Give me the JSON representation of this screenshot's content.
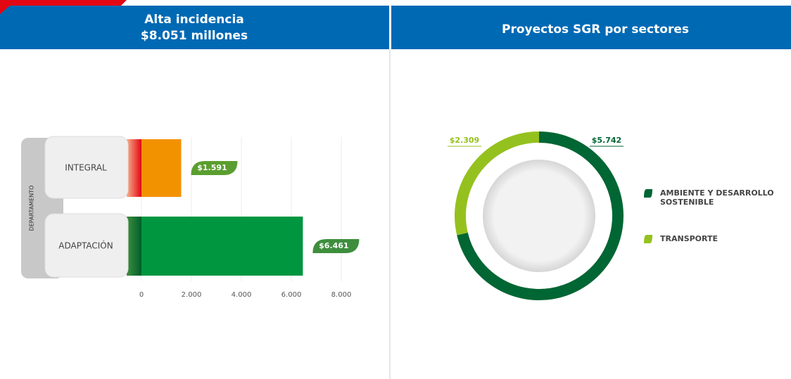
{
  "chart_data": [
    {
      "type": "hbar",
      "title": "Alta incidencia",
      "subtitle": "$8.051 millones",
      "axis_label": "DEPARTAMENTO",
      "categories": [
        "INTEGRAL",
        "ADAPTACIÓN"
      ],
      "values": [
        1591,
        6461
      ],
      "value_labels": [
        "$1.591",
        "$6.461"
      ],
      "colors": [
        "#f39200",
        "#009640"
      ],
      "xlim": [
        0,
        8000
      ],
      "xticks": [
        0,
        {
          "value": 2000,
          "label": "2.000"
        },
        {
          "value": 4000,
          "label": "4.000"
        },
        {
          "value": 6000,
          "label": "6.000"
        },
        {
          "value": 8000,
          "label": "8.000"
        }
      ],
      "grid": true
    },
    {
      "type": "donut",
      "title": "Proyectos SGR por sectores",
      "categories": [
        "AMBIENTE Y DESARROLLO SOSTENIBLE",
        "TRANSPORTE"
      ],
      "values": [
        5742,
        2309
      ],
      "value_labels": [
        "$5.742",
        "$2.309"
      ],
      "colors": [
        "#006633",
        "#95c11f"
      ],
      "legend": "right"
    }
  ]
}
